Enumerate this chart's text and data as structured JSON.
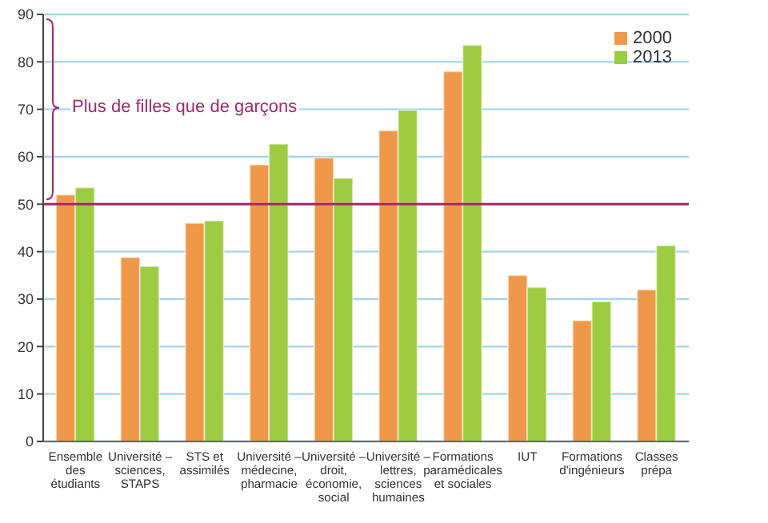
{
  "chart_data": {
    "type": "bar",
    "categories": [
      "Ensemble des étudiants",
      "Université – sciences, STAPS",
      "STS et assimilés",
      "Université – médecine, pharmacie",
      "Université – droit, économie, social",
      "Université – lettres, sciences humaines",
      "Formations paramédicales et sociales",
      "IUT",
      "Formations d'ingénieurs",
      "Classes prépa"
    ],
    "series": [
      {
        "name": "2000",
        "color": "#f0984a",
        "values": [
          52,
          38.8,
          46,
          58.3,
          59.8,
          65.5,
          78,
          35,
          25.5,
          32
        ]
      },
      {
        "name": "2013",
        "color": "#9ccc3f",
        "values": [
          53.5,
          36.9,
          46.5,
          62.7,
          55.5,
          69.8,
          83.5,
          32.5,
          29.5,
          41.3
        ]
      }
    ],
    "ylim": [
      0,
      90
    ],
    "yticks": [
      0,
      10,
      20,
      30,
      40,
      50,
      60,
      70,
      80,
      90
    ],
    "grid": "y",
    "legend": "top right",
    "ref_lines": [
      {
        "axis": "y",
        "value": 50,
        "color": "#a3286e"
      }
    ],
    "annotations": [
      "Plus de filles que de garçons"
    ]
  }
}
